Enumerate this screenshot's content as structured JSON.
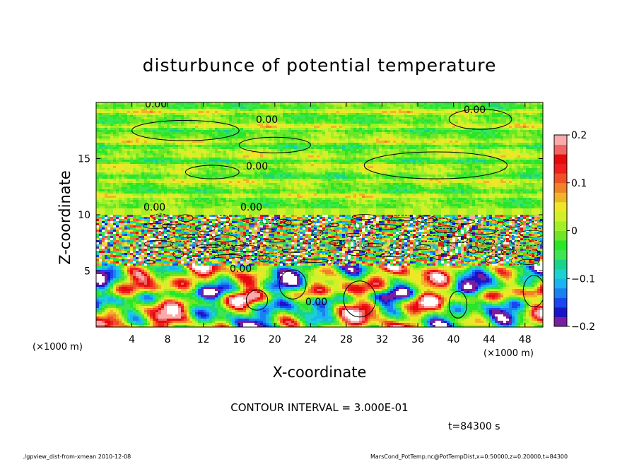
{
  "header": {
    "title": "disturbunce of potential temperature",
    "xlabel": "X-coordinate",
    "ylabel": "Z-coordinate",
    "x_unit_left": "(×1000 m)",
    "x_unit_right": "(×1000 m)"
  },
  "annotations": {
    "contour_interval": "CONTOUR INTERVAL = 3.000E-01",
    "time": "t=84300 s",
    "footer_left": "./gpview_dist-from-xmean 2010-12-08",
    "footer_right": "MarsCond_PotTemp.nc@PotTempDist,x=0:50000,z=0:20000,t=84300",
    "contour_labels": [
      "0.00",
      "0.00",
      "0.00",
      "0.00",
      "0.00",
      "0.00",
      "0.00",
      "0.00"
    ]
  },
  "chart_data": {
    "type": "heatmap",
    "title": "disturbunce of potential temperature",
    "xlabel": "X-coordinate",
    "ylabel": "Z-coordinate",
    "x_unit": "(×1000 m)",
    "xlim": [
      0,
      50
    ],
    "ylim": [
      0,
      20
    ],
    "x_ticks": [
      4,
      8,
      12,
      16,
      20,
      24,
      28,
      32,
      36,
      40,
      44,
      48
    ],
    "y_ticks": [
      5,
      10,
      15
    ],
    "colorbar": {
      "range": [
        -0.2,
        0.2
      ],
      "ticks": [
        0.2,
        0.1,
        0,
        -0.1,
        -0.2
      ],
      "tick_labels": [
        "0.2",
        "0.1",
        "0",
        "−0.1",
        "−0.2"
      ],
      "colors": [
        "#7a1ea0",
        "#1a14c8",
        "#1a46f0",
        "#1a82f0",
        "#1ab4f0",
        "#1ad2d2",
        "#1ad28c",
        "#3ce650",
        "#28e628",
        "#6ee628",
        "#a0f028",
        "#d2f028",
        "#f0e628",
        "#f0b428",
        "#f08228",
        "#f05028",
        "#f01e1e",
        "#e60a0a",
        "#f06464",
        "#faaaaa"
      ]
    },
    "contour_interval": 0.3,
    "time_s": 84300
  }
}
